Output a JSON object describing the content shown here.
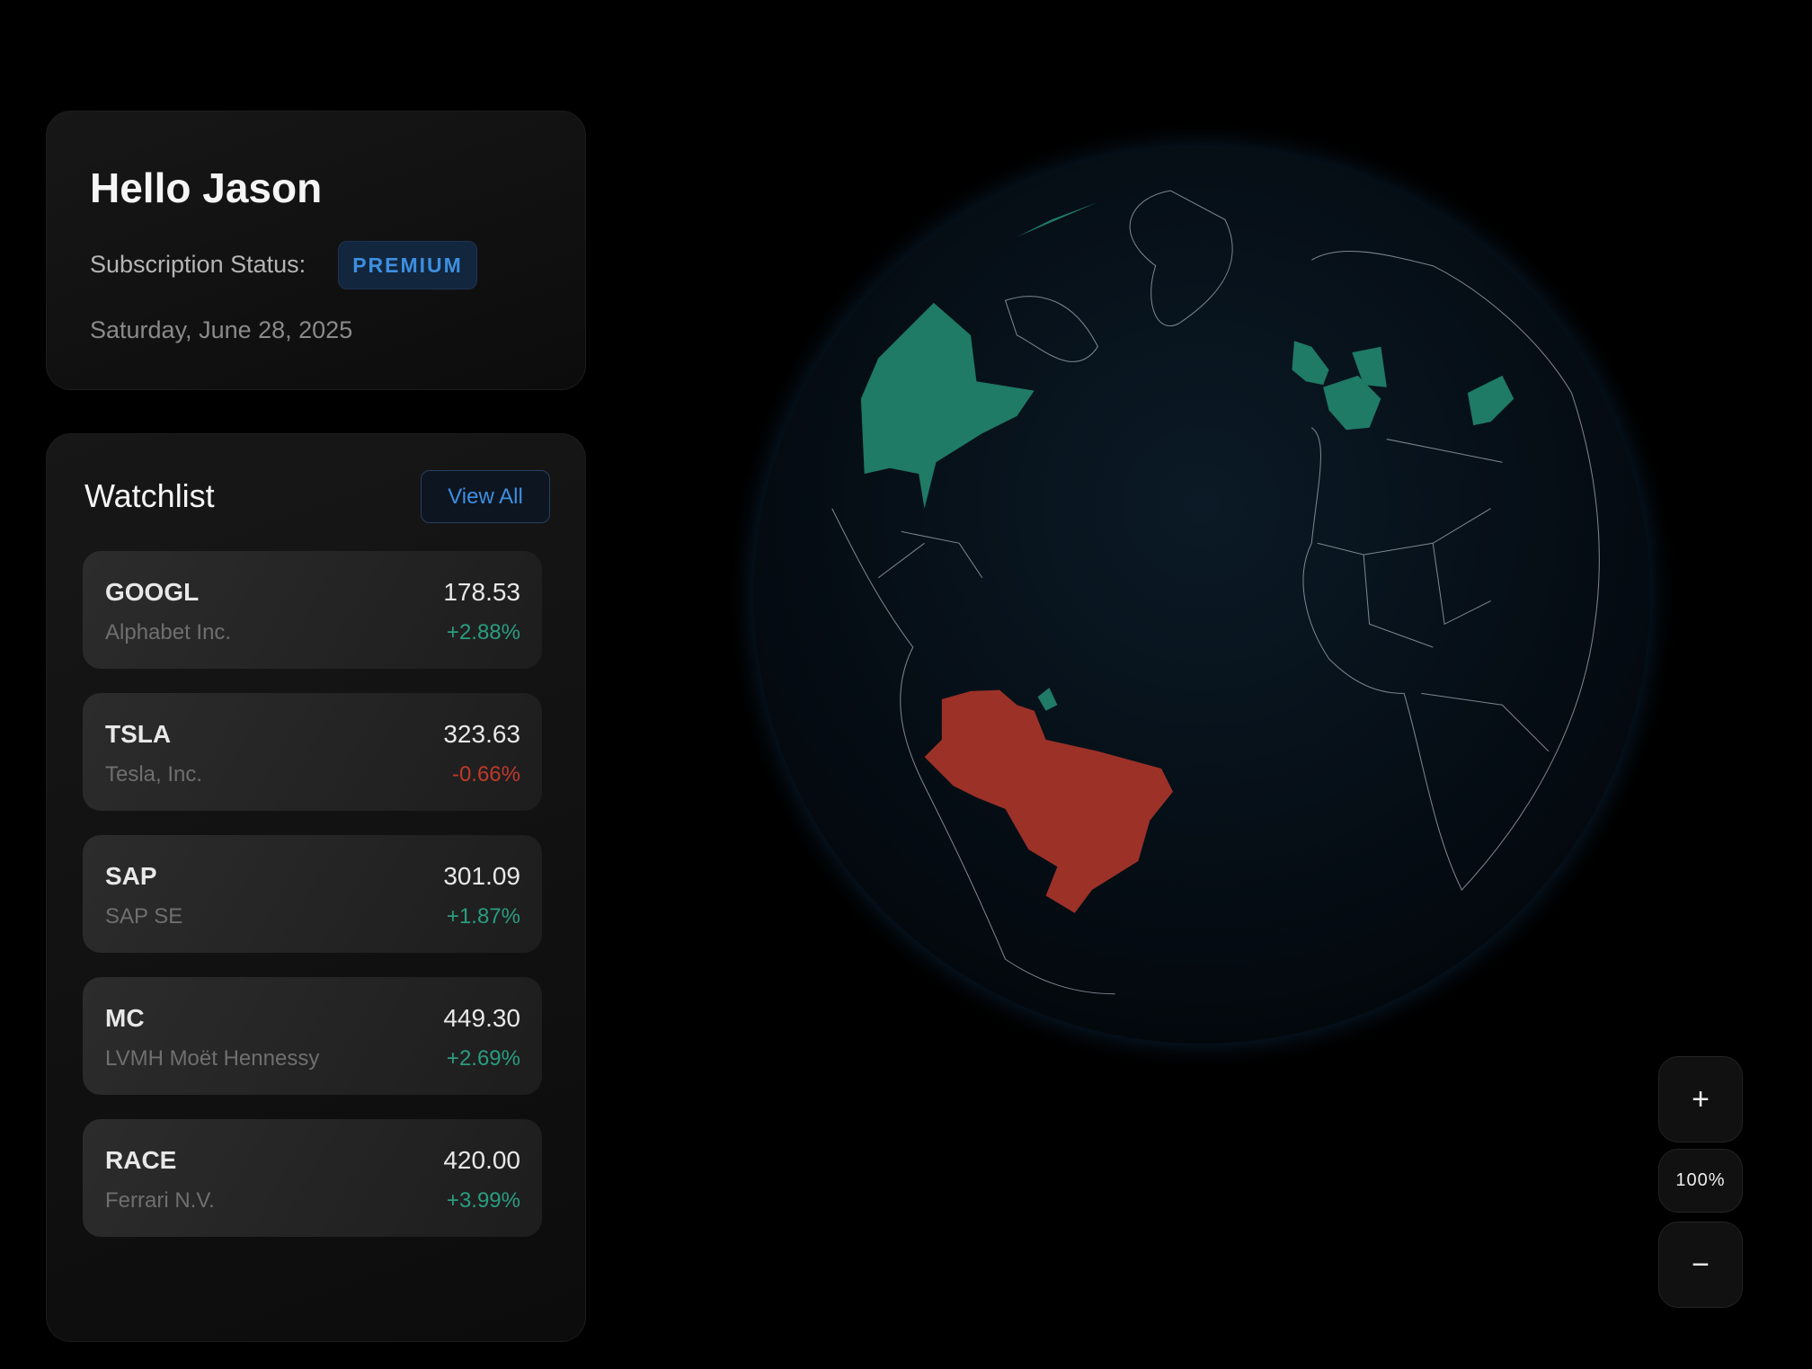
{
  "header": {
    "title": "Hello Jason",
    "subscription_label": "Subscription Status:",
    "badge": "PREMIUM",
    "date": "Saturday, June 28, 2025"
  },
  "watchlist": {
    "title": "Watchlist",
    "view_all": "View All",
    "items": [
      {
        "symbol": "GOOGL",
        "name": "Alphabet Inc.",
        "price": "178.53",
        "change": "+2.88%"
      },
      {
        "symbol": "TSLA",
        "name": "Tesla, Inc.",
        "price": "323.63",
        "change": "-0.66%"
      },
      {
        "symbol": "SAP",
        "name": "SAP SE",
        "price": "301.09",
        "change": "+1.87%"
      },
      {
        "symbol": "MC",
        "name": "LVMH Moët Hennessy",
        "price": "449.30",
        "change": "+2.69%"
      },
      {
        "symbol": "RACE",
        "name": "Ferrari N.V.",
        "price": "420.00",
        "change": "+3.99%"
      }
    ]
  },
  "zoom": {
    "plus": "+",
    "level": "100%",
    "minus": "−"
  }
}
